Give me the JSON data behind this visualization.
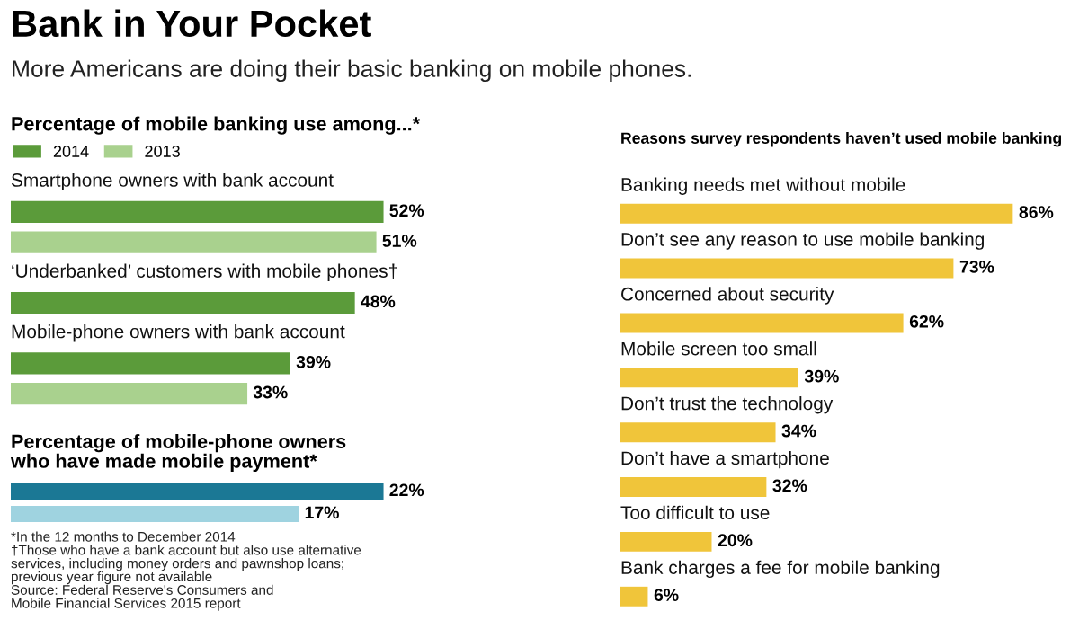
{
  "chart_data": [
    {
      "type": "other",
      "title": "Bank in Your Pocket",
      "subtitle": "More Americans are doing their basic banking on mobile phones."
    },
    {
      "type": "bar",
      "orientation": "horizontal",
      "title": "Percentage of mobile banking use among...*",
      "legend": "top left",
      "categories": [
        "Smartphone owners with bank account",
        "‘Underbanked’ customers with mobile phones†",
        "Mobile-phone owners with bank account"
      ],
      "series": [
        {
          "name": "2014",
          "color": "#5b9b3a",
          "values": [
            52,
            48,
            39
          ],
          "value_labels": [
            "52%",
            "48%",
            "39%"
          ]
        },
        {
          "name": "2013",
          "color": "#a9d18e",
          "values": [
            51,
            null,
            33
          ],
          "value_labels": [
            "51%",
            null,
            "33%"
          ]
        }
      ]
    },
    {
      "type": "bar",
      "orientation": "horizontal",
      "title": "Percentage of mobile-phone owners\nwho have made mobile payment*",
      "categories": [
        null
      ],
      "series": [
        {
          "color": "#1b7895",
          "values": [
            22
          ],
          "value_labels": [
            "22%"
          ]
        },
        {
          "color": "#9fd3e0",
          "values": [
            17
          ],
          "value_labels": [
            "17%"
          ]
        }
      ],
      "annotations": [
        "*In the 12 months to December 2014",
        "†Those who have a bank account but also use alternative\nservices, including money orders and pawnshop loans;\nprevious year figure not available",
        "Source: Federal Reserve's Consumers and\nMobile Financial Services 2015 report"
      ]
    },
    {
      "type": "bar",
      "orientation": "horizontal",
      "title": "Reasons survey respondents haven’t used mobile banking",
      "categories": [
        "Banking needs met without mobile",
        "Don’t see any reason to use mobile banking",
        "Concerned about security",
        "Mobile screen too small",
        "Don’t trust the technology",
        "Don’t have a smartphone",
        "Too difficult to use",
        "Bank charges a fee for mobile banking"
      ],
      "values": [
        86,
        73,
        62,
        39,
        34,
        32,
        20,
        6
      ],
      "color": "#f0c53a",
      "value_labels": [
        "86%",
        "73%",
        "62%",
        "39%",
        "34%",
        "32%",
        "20%",
        "6%"
      ]
    }
  ]
}
